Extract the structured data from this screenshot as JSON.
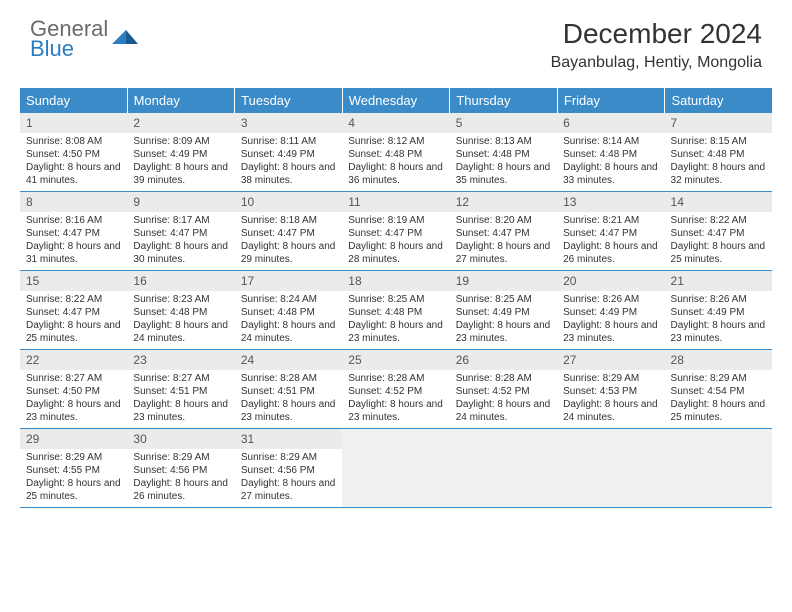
{
  "logo": {
    "line1": "General",
    "line2": "Blue"
  },
  "title": "December 2024",
  "location": "Bayanbulag, Hentiy, Mongolia",
  "colors": {
    "header_bg": "#3b8bc9",
    "header_text": "#ffffff",
    "daynum_bg": "#ebebeb",
    "border": "#3b8bc9",
    "logo_gray": "#6b6b6b",
    "logo_blue": "#2b7cc0"
  },
  "weekdays": [
    "Sunday",
    "Monday",
    "Tuesday",
    "Wednesday",
    "Thursday",
    "Friday",
    "Saturday"
  ],
  "days": [
    {
      "n": 1,
      "sr": "8:08 AM",
      "ss": "4:50 PM",
      "dl": "8 hours and 41 minutes."
    },
    {
      "n": 2,
      "sr": "8:09 AM",
      "ss": "4:49 PM",
      "dl": "8 hours and 39 minutes."
    },
    {
      "n": 3,
      "sr": "8:11 AM",
      "ss": "4:49 PM",
      "dl": "8 hours and 38 minutes."
    },
    {
      "n": 4,
      "sr": "8:12 AM",
      "ss": "4:48 PM",
      "dl": "8 hours and 36 minutes."
    },
    {
      "n": 5,
      "sr": "8:13 AM",
      "ss": "4:48 PM",
      "dl": "8 hours and 35 minutes."
    },
    {
      "n": 6,
      "sr": "8:14 AM",
      "ss": "4:48 PM",
      "dl": "8 hours and 33 minutes."
    },
    {
      "n": 7,
      "sr": "8:15 AM",
      "ss": "4:48 PM",
      "dl": "8 hours and 32 minutes."
    },
    {
      "n": 8,
      "sr": "8:16 AM",
      "ss": "4:47 PM",
      "dl": "8 hours and 31 minutes."
    },
    {
      "n": 9,
      "sr": "8:17 AM",
      "ss": "4:47 PM",
      "dl": "8 hours and 30 minutes."
    },
    {
      "n": 10,
      "sr": "8:18 AM",
      "ss": "4:47 PM",
      "dl": "8 hours and 29 minutes."
    },
    {
      "n": 11,
      "sr": "8:19 AM",
      "ss": "4:47 PM",
      "dl": "8 hours and 28 minutes."
    },
    {
      "n": 12,
      "sr": "8:20 AM",
      "ss": "4:47 PM",
      "dl": "8 hours and 27 minutes."
    },
    {
      "n": 13,
      "sr": "8:21 AM",
      "ss": "4:47 PM",
      "dl": "8 hours and 26 minutes."
    },
    {
      "n": 14,
      "sr": "8:22 AM",
      "ss": "4:47 PM",
      "dl": "8 hours and 25 minutes."
    },
    {
      "n": 15,
      "sr": "8:22 AM",
      "ss": "4:47 PM",
      "dl": "8 hours and 25 minutes."
    },
    {
      "n": 16,
      "sr": "8:23 AM",
      "ss": "4:48 PM",
      "dl": "8 hours and 24 minutes."
    },
    {
      "n": 17,
      "sr": "8:24 AM",
      "ss": "4:48 PM",
      "dl": "8 hours and 24 minutes."
    },
    {
      "n": 18,
      "sr": "8:25 AM",
      "ss": "4:48 PM",
      "dl": "8 hours and 23 minutes."
    },
    {
      "n": 19,
      "sr": "8:25 AM",
      "ss": "4:49 PM",
      "dl": "8 hours and 23 minutes."
    },
    {
      "n": 20,
      "sr": "8:26 AM",
      "ss": "4:49 PM",
      "dl": "8 hours and 23 minutes."
    },
    {
      "n": 21,
      "sr": "8:26 AM",
      "ss": "4:49 PM",
      "dl": "8 hours and 23 minutes."
    },
    {
      "n": 22,
      "sr": "8:27 AM",
      "ss": "4:50 PM",
      "dl": "8 hours and 23 minutes."
    },
    {
      "n": 23,
      "sr": "8:27 AM",
      "ss": "4:51 PM",
      "dl": "8 hours and 23 minutes."
    },
    {
      "n": 24,
      "sr": "8:28 AM",
      "ss": "4:51 PM",
      "dl": "8 hours and 23 minutes."
    },
    {
      "n": 25,
      "sr": "8:28 AM",
      "ss": "4:52 PM",
      "dl": "8 hours and 23 minutes."
    },
    {
      "n": 26,
      "sr": "8:28 AM",
      "ss": "4:52 PM",
      "dl": "8 hours and 24 minutes."
    },
    {
      "n": 27,
      "sr": "8:29 AM",
      "ss": "4:53 PM",
      "dl": "8 hours and 24 minutes."
    },
    {
      "n": 28,
      "sr": "8:29 AM",
      "ss": "4:54 PM",
      "dl": "8 hours and 25 minutes."
    },
    {
      "n": 29,
      "sr": "8:29 AM",
      "ss": "4:55 PM",
      "dl": "8 hours and 25 minutes."
    },
    {
      "n": 30,
      "sr": "8:29 AM",
      "ss": "4:56 PM",
      "dl": "8 hours and 26 minutes."
    },
    {
      "n": 31,
      "sr": "8:29 AM",
      "ss": "4:56 PM",
      "dl": "8 hours and 27 minutes."
    }
  ],
  "labels": {
    "sunrise": "Sunrise:",
    "sunset": "Sunset:",
    "daylight": "Daylight:"
  },
  "grid": {
    "start_offset": 0,
    "total_cells": 35
  }
}
